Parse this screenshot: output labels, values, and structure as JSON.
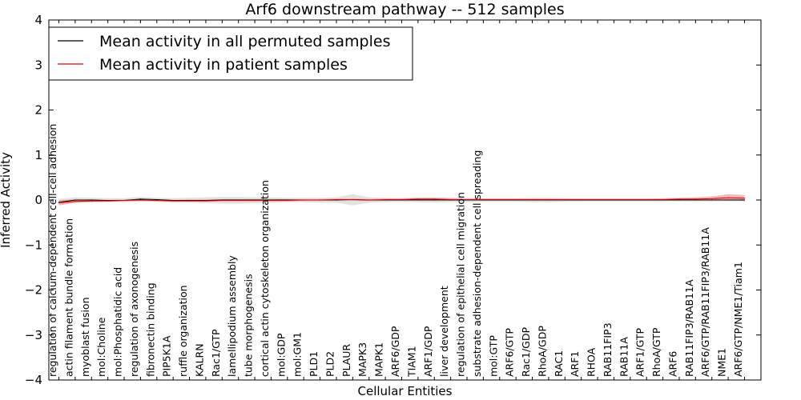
{
  "chart_data": {
    "type": "line",
    "title": "Arf6 downstream pathway -- 512 samples",
    "xlabel": "Cellular Entities",
    "ylabel": "Inferred Activity",
    "ylim": [
      -4,
      4
    ],
    "yticks": [
      -4,
      -3,
      -2,
      -1,
      0,
      1,
      2,
      3,
      4
    ],
    "ytick_labels": [
      "−4",
      "−3",
      "−2",
      "−1",
      "0",
      "1",
      "2",
      "3",
      "4"
    ],
    "grid": false,
    "legend_position": "top-left",
    "categories": [
      "regulation of calcium-dependent cell-cell adhesion",
      "actin filament bundle formation",
      "myoblast fusion",
      "mol:Choline",
      "mol:Phosphatidic acid",
      "regulation of axonogenesis",
      "fibronectin binding",
      "PIP5K1A",
      "ruffle organization",
      "KALRN",
      "Rac1/GTP",
      "lamellipodium assembly",
      "tube morphogenesis",
      "cortical actin cytoskeleton organization",
      "mol:GDP",
      "mol:GM1",
      "PLD1",
      "PLD2",
      "PLAUR",
      "MAPK3",
      "MAPK1",
      "ARF6/GDP",
      "TIAM1",
      "ARF1/GDP",
      "liver development",
      "regulation of epithelial cell migration",
      "substrate adhesion-dependent cell spreading",
      "mol:GTP",
      "ARF6/GTP",
      "Rac1/GDP",
      "RhoA/GDP",
      "RAC1",
      "ARF1",
      "RHOA",
      "RAB11FIP3",
      "RAB11A",
      "ARF1/GTP",
      "RhoA/GTP",
      "ARF6",
      "RAB11FIP3/RAB11A",
      "ARF6/GTP/RAB11FIP3/RAB11A",
      "NME1",
      "ARF6/GTP/NME1/Tiam1"
    ],
    "series": [
      {
        "name": "Mean activity in all permuted samples",
        "color": "#000000",
        "band_color": "#bfbfbf",
        "values": [
          -0.05,
          0.0,
          0.0,
          -0.01,
          -0.01,
          0.02,
          0.01,
          -0.01,
          -0.01,
          -0.01,
          0.0,
          0.0,
          0.0,
          0.0,
          0.0,
          0.0,
          0.0,
          0.0,
          0.01,
          0.0,
          0.0,
          0.0,
          0.0,
          0.0,
          0.0,
          0.0,
          0.0,
          0.0,
          0.0,
          0.0,
          0.0,
          0.0,
          0.0,
          0.0,
          0.0,
          0.0,
          0.0,
          0.0,
          0.0,
          0.0,
          0.0,
          0.0,
          0.0
        ],
        "band_low": [
          -0.1,
          -0.06,
          -0.05,
          -0.05,
          -0.05,
          -0.03,
          -0.04,
          -0.06,
          -0.06,
          -0.07,
          -0.08,
          -0.08,
          -0.07,
          -0.06,
          -0.05,
          -0.05,
          -0.06,
          -0.06,
          -0.12,
          -0.06,
          -0.05,
          -0.04,
          -0.05,
          -0.06,
          -0.05,
          -0.05,
          -0.04,
          -0.04,
          -0.04,
          -0.05,
          -0.05,
          -0.04,
          -0.03,
          -0.03,
          -0.03,
          -0.03,
          -0.03,
          -0.03,
          -0.03,
          -0.03,
          -0.03,
          -0.03,
          -0.03
        ],
        "band_high": [
          0.02,
          0.06,
          0.05,
          0.04,
          0.04,
          0.07,
          0.05,
          0.04,
          0.05,
          0.06,
          0.07,
          0.07,
          0.06,
          0.06,
          0.05,
          0.05,
          0.05,
          0.06,
          0.13,
          0.06,
          0.05,
          0.04,
          0.05,
          0.06,
          0.05,
          0.05,
          0.04,
          0.04,
          0.04,
          0.05,
          0.05,
          0.04,
          0.03,
          0.03,
          0.03,
          0.03,
          0.03,
          0.03,
          0.03,
          0.03,
          0.03,
          0.03,
          0.03
        ]
      },
      {
        "name": "Mean activity in patient samples",
        "color": "#e00000",
        "band_color": "#f08080",
        "values": [
          -0.06,
          -0.03,
          -0.02,
          -0.02,
          -0.01,
          0.0,
          -0.01,
          -0.02,
          -0.02,
          -0.02,
          -0.01,
          -0.01,
          -0.01,
          -0.01,
          -0.01,
          0.0,
          0.0,
          0.01,
          0.01,
          0.0,
          0.01,
          0.01,
          0.02,
          0.02,
          0.01,
          0.01,
          0.01,
          0.01,
          0.01,
          0.01,
          0.01,
          0.01,
          0.01,
          0.01,
          0.01,
          0.01,
          0.01,
          0.01,
          0.02,
          0.02,
          0.03,
          0.05,
          0.04
        ],
        "band_low": [
          -0.12,
          -0.06,
          -0.05,
          -0.04,
          -0.03,
          -0.02,
          -0.03,
          -0.04,
          -0.04,
          -0.04,
          -0.03,
          -0.03,
          -0.03,
          -0.03,
          -0.03,
          -0.02,
          -0.02,
          -0.01,
          -0.01,
          -0.02,
          -0.01,
          -0.01,
          0.0,
          0.0,
          -0.01,
          -0.01,
          -0.01,
          -0.01,
          -0.01,
          -0.01,
          -0.01,
          -0.01,
          -0.01,
          -0.01,
          -0.01,
          -0.01,
          -0.01,
          -0.01,
          0.0,
          0.0,
          0.0,
          0.0,
          -0.02
        ],
        "band_high": [
          0.0,
          0.01,
          0.01,
          0.0,
          0.01,
          0.02,
          0.01,
          0.0,
          0.01,
          0.01,
          0.02,
          0.02,
          0.02,
          0.02,
          0.02,
          0.02,
          0.02,
          0.03,
          0.03,
          0.02,
          0.03,
          0.04,
          0.05,
          0.05,
          0.04,
          0.03,
          0.03,
          0.03,
          0.03,
          0.03,
          0.03,
          0.03,
          0.03,
          0.03,
          0.03,
          0.03,
          0.03,
          0.04,
          0.05,
          0.06,
          0.08,
          0.13,
          0.11
        ]
      }
    ]
  }
}
